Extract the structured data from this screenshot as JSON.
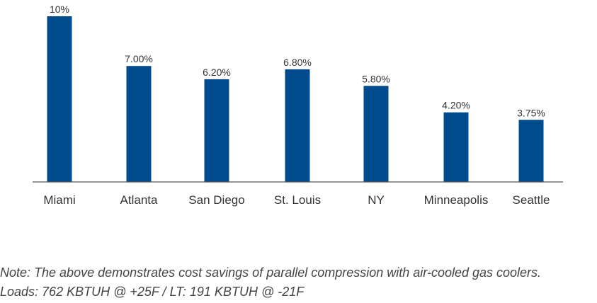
{
  "chart_data": {
    "type": "bar",
    "title": "",
    "xlabel": "",
    "ylabel": "",
    "categories": [
      "Miami",
      "Atlanta",
      "San Diego",
      "St. Louis",
      "NY",
      "Minneapolis",
      "Seattle"
    ],
    "values": [
      10,
      7.0,
      6.2,
      6.8,
      5.8,
      4.2,
      3.75
    ],
    "value_labels": [
      "10%",
      "7.00%",
      "6.20%",
      "6.80%",
      "5.80%",
      "4.20%",
      "3.75%"
    ],
    "ylim": [
      0,
      10
    ],
    "grid": false,
    "legend": "none",
    "bar_color": "#004b8d",
    "axis_color": "#555555"
  },
  "notes": {
    "line1": "Note: The above demonstrates cost savings of parallel compression with air-cooled gas coolers.",
    "line2": "Loads: 762 KBTUH @ +25F / LT: 191 KBTUH @ -21F"
  }
}
